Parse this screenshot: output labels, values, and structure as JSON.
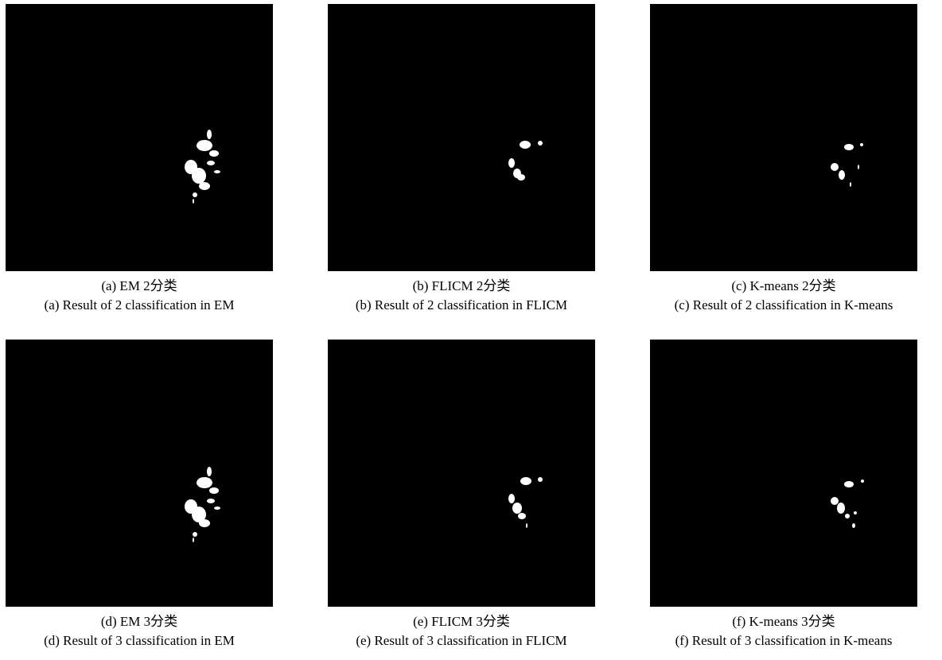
{
  "figure": {
    "panels": [
      {
        "caption_cn": "(a) EM 2分类",
        "caption_en": "(a) Result of 2 classification in EM"
      },
      {
        "caption_cn": "(b) FLICM 2分类",
        "caption_en": "(b) Result of 2 classification in FLICM"
      },
      {
        "caption_cn": "(c) K-means 2分类",
        "caption_en": "(c) Result of 2 classification in K-means"
      },
      {
        "caption_cn": "(d) EM 3分类",
        "caption_en": "(d) Result of 3 classification in EM"
      },
      {
        "caption_cn": "(e) FLICM 3分类",
        "caption_en": "(e) Result of 3 classification in FLICM"
      },
      {
        "caption_cn": "(f) K-means 3分类",
        "caption_en": "(f) Result of 3 classification in K-means"
      }
    ]
  }
}
